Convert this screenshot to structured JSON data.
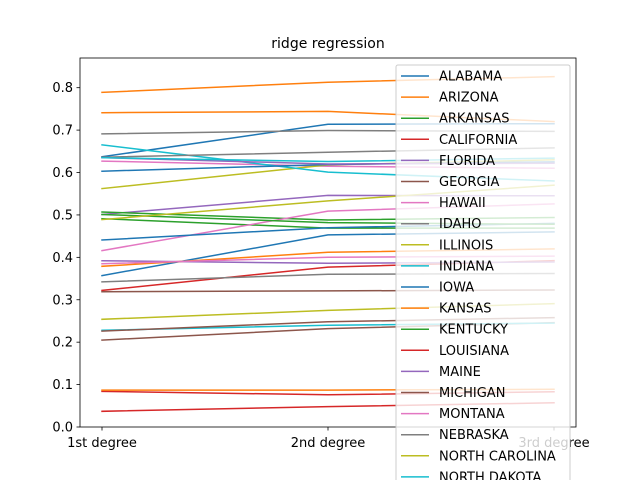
{
  "chart_data": {
    "type": "line",
    "title": "ridge regression",
    "xlabel": "",
    "ylabel": "",
    "categories": [
      "1st degree",
      "2nd degree",
      "3rd degree"
    ],
    "ylim": [
      0.0,
      0.87
    ],
    "yticks": [
      0.0,
      0.1,
      0.2,
      0.3,
      0.4,
      0.5,
      0.6,
      0.7,
      0.8
    ],
    "grid": false,
    "legend_position": "upper right, overlapping plot",
    "series": [
      {
        "name": "ALABAMA",
        "color": "#1f77b4",
        "values": [
          0.637,
          0.714,
          0.715
        ]
      },
      {
        "name": "ARIZONA",
        "color": "#ff7f0e",
        "values": [
          0.789,
          0.813,
          0.826
        ]
      },
      {
        "name": "ARKANSAS",
        "color": "#2ca02c",
        "values": [
          0.491,
          0.469,
          0.469
        ]
      },
      {
        "name": "CALIFORNIA",
        "color": "#d62728",
        "values": [
          0.322,
          0.377,
          0.392
        ]
      },
      {
        "name": "FLORIDA",
        "color": "#9467bd",
        "values": [
          0.501,
          0.546,
          0.545
        ]
      },
      {
        "name": "GEORGIA",
        "color": "#8c564b",
        "values": [
          0.319,
          0.321,
          0.323
        ]
      },
      {
        "name": "HAWAII",
        "color": "#e377c2",
        "values": [
          0.627,
          0.615,
          0.61
        ]
      },
      {
        "name": "IDAHO",
        "color": "#7f7f7f",
        "values": [
          0.691,
          0.699,
          0.697
        ]
      },
      {
        "name": "ILLINOIS",
        "color": "#bcbd22",
        "values": [
          0.562,
          0.618,
          0.63
        ]
      },
      {
        "name": "INDIANA",
        "color": "#17becf",
        "values": [
          0.665,
          0.601,
          0.58
        ]
      },
      {
        "name": "IOWA",
        "color": "#1f77b4",
        "values": [
          0.603,
          0.619,
          0.625
        ]
      },
      {
        "name": "KANSAS",
        "color": "#ff7f0e",
        "values": [
          0.741,
          0.744,
          0.72
        ]
      },
      {
        "name": "KENTUCKY",
        "color": "#2ca02c",
        "values": [
          0.507,
          0.488,
          0.494
        ]
      },
      {
        "name": "LOUISIANA",
        "color": "#d62728",
        "values": [
          0.084,
          0.076,
          0.083
        ]
      },
      {
        "name": "MAINE",
        "color": "#9467bd",
        "values": [
          0.392,
          0.386,
          0.389
        ]
      },
      {
        "name": "MICHIGAN",
        "color": "#8c564b",
        "values": [
          0.205,
          0.232,
          0.246
        ]
      },
      {
        "name": "MONTANA",
        "color": "#e377c2",
        "values": [
          0.416,
          0.509,
          0.526
        ]
      },
      {
        "name": "NEBRASKA",
        "color": "#7f7f7f",
        "values": [
          0.342,
          0.36,
          0.362
        ]
      },
      {
        "name": "NORTH CAROLINA",
        "color": "#bcbd22",
        "values": [
          0.254,
          0.275,
          0.291
        ]
      },
      {
        "name": "NORTH DAKOTA",
        "color": "#17becf",
        "values": [
          0.228,
          0.24,
          0.245
        ]
      },
      {
        "name": "",
        "color": "#1f77b4",
        "values": [
          0.441,
          0.47,
          0.48
        ]
      },
      {
        "name": "",
        "color": "#1f77b4",
        "values": [
          0.357,
          0.453,
          0.46
        ]
      },
      {
        "name": "",
        "color": "#ff7f0e",
        "values": [
          0.379,
          0.412,
          0.42
        ]
      },
      {
        "name": "",
        "color": "#ff7f0e",
        "values": [
          0.087,
          0.087,
          0.089
        ]
      },
      {
        "name": "",
        "color": "#2ca02c",
        "values": [
          0.501,
          0.482,
          0.478
        ]
      },
      {
        "name": "",
        "color": "#d62728",
        "values": [
          0.037,
          0.048,
          0.057
        ]
      },
      {
        "name": "",
        "color": "#9467bd",
        "values": [
          0.635,
          0.62,
          0.622
        ]
      },
      {
        "name": "",
        "color": "#8c564b",
        "values": [
          0.226,
          0.248,
          0.258
        ]
      },
      {
        "name": "",
        "color": "#e377c2",
        "values": [
          0.385,
          0.4,
          0.403
        ]
      },
      {
        "name": "",
        "color": "#7f7f7f",
        "values": [
          0.636,
          0.648,
          0.658
        ]
      },
      {
        "name": "",
        "color": "#bcbd22",
        "values": [
          0.489,
          0.533,
          0.57
        ]
      },
      {
        "name": "",
        "color": "#17becf",
        "values": [
          0.635,
          0.626,
          0.634
        ]
      }
    ]
  }
}
